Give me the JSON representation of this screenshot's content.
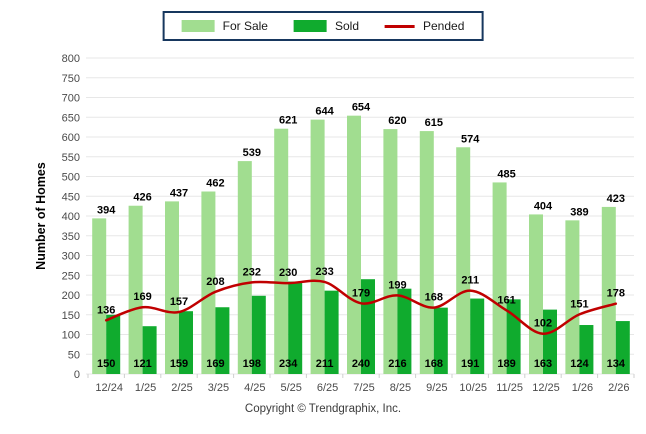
{
  "legend": {
    "items": [
      {
        "label": "For Sale",
        "color": "#A1DD90",
        "swatch": "box"
      },
      {
        "label": "Sold",
        "color": "#10AB2E",
        "swatch": "box"
      },
      {
        "label": "Pended",
        "color": "#C00000",
        "swatch": "line"
      }
    ],
    "border_color": "#17375E"
  },
  "footer": {
    "copyright": "Copyright © Trendgraphix, Inc."
  },
  "chart_data": {
    "type": "bar",
    "title": "",
    "xlabel": "",
    "ylabel": "Number of Homes",
    "ylim": [
      0,
      800
    ],
    "ytick_step": 50,
    "grid": true,
    "grid_color": "#E7E7E7",
    "legend_position": "top",
    "axis_text_color": "#4a4a4a",
    "value_label_color": "#000000",
    "categories": [
      "12/24",
      "1/25",
      "2/25",
      "3/25",
      "4/25",
      "5/25",
      "6/25",
      "7/25",
      "8/25",
      "9/25",
      "10/25",
      "11/25",
      "12/25",
      "1/26",
      "2/26"
    ],
    "series": [
      {
        "name": "For Sale",
        "type": "bar",
        "color": "#A1DD90",
        "values": [
          394,
          426,
          437,
          462,
          539,
          621,
          644,
          654,
          620,
          615,
          574,
          485,
          404,
          389,
          423
        ]
      },
      {
        "name": "Sold",
        "type": "bar",
        "color": "#10AB2E",
        "values": [
          150,
          121,
          159,
          169,
          198,
          234,
          211,
          240,
          216,
          168,
          191,
          189,
          163,
          124,
          134
        ]
      },
      {
        "name": "Pended",
        "type": "line",
        "color": "#C00000",
        "values": [
          136,
          169,
          157,
          208,
          232,
          230,
          233,
          179,
          199,
          168,
          211,
          161,
          102,
          151,
          178
        ]
      }
    ]
  }
}
